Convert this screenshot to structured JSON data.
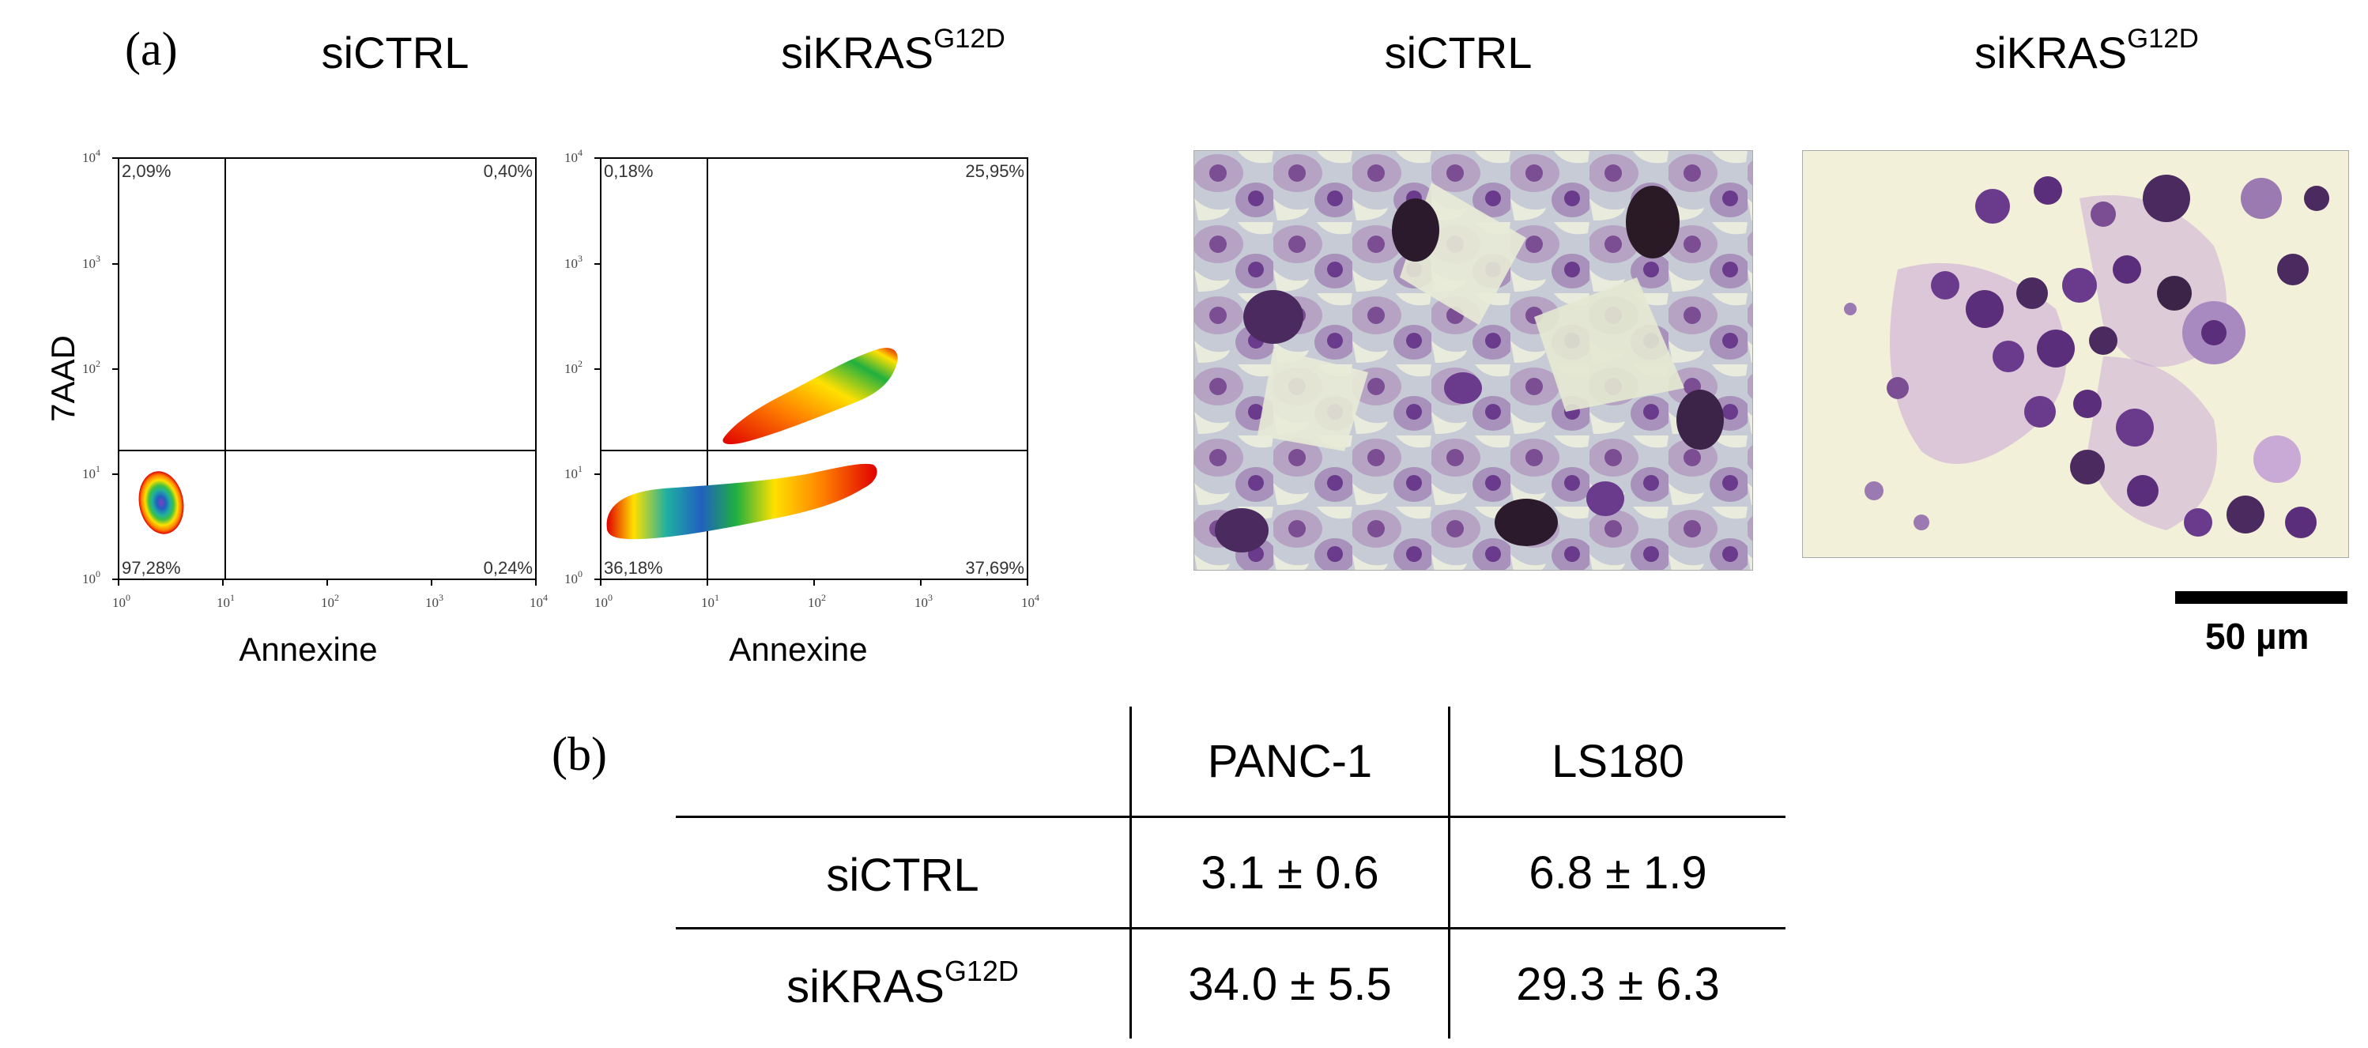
{
  "panel_a": {
    "label": "(a)",
    "facs_titles": [
      {
        "base": "siCTRL",
        "sup": ""
      },
      {
        "base": "siKRAS",
        "sup": "G12D"
      }
    ],
    "micro_titles": [
      {
        "base": "siCTRL",
        "sup": ""
      },
      {
        "base": "siKRAS",
        "sup": "G12D"
      }
    ],
    "y_axis_label": "7AAD",
    "x_axis_label": "Annexine",
    "tick_base": "10",
    "tick_exponents": [
      "0",
      "1",
      "2",
      "3",
      "4"
    ],
    "facs_plots": [
      {
        "quadrants": {
          "ul": "2,09%",
          "ur": "0,40%",
          "ll": "97,28%",
          "lr": "0,24%"
        }
      },
      {
        "quadrants": {
          "ul": "0,18%",
          "ur": "25,95%",
          "ll": "36,18%",
          "lr": "37,69%"
        }
      }
    ],
    "scale_bar_label": "50 µm",
    "colors": {
      "facs_high": "#2060c0",
      "facs_mid": "#20b040",
      "facs_low": "#ffe000",
      "facs_edge": "#e00000",
      "stain": "#6a3a8c"
    }
  },
  "panel_b": {
    "label": "(b)",
    "columns": [
      "",
      "PANC-1",
      "LS180"
    ],
    "rows": [
      {
        "name": {
          "base": "siCTRL",
          "sup": ""
        },
        "values": [
          "3.1 ± 0.6",
          "6.8 ± 1.9"
        ]
      },
      {
        "name": {
          "base": "siKRAS",
          "sup": "G12D"
        },
        "values": [
          "34.0 ± 5.5",
          "29.3 ± 6.3"
        ]
      }
    ]
  }
}
